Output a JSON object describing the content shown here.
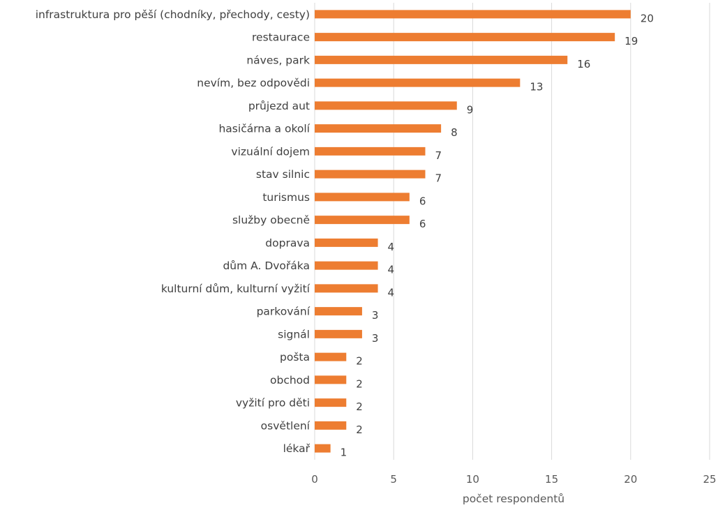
{
  "chart_data": {
    "type": "bar",
    "orientation": "horizontal",
    "categories": [
      "infrastruktura pro pěší (chodníky, přechody, cesty)",
      "restaurace",
      "náves, park",
      "nevím, bez odpovědi",
      "průjezd aut",
      "hasičárna a okolí",
      "vizuální dojem",
      "stav silnic",
      "turismus",
      "služby obecně",
      "doprava",
      "dům A. Dvořáka",
      "kulturní dům, kulturní vyžití",
      "parkování",
      "signál",
      "pošta",
      "obchod",
      "vyžití pro děti",
      "osvětlení",
      "lékař"
    ],
    "values": [
      20,
      19,
      16,
      13,
      9,
      8,
      7,
      7,
      6,
      6,
      4,
      4,
      4,
      3,
      3,
      2,
      2,
      2,
      2,
      1
    ],
    "title": "",
    "xlabel": "počet respondentů",
    "ylabel": "",
    "xlim": [
      0,
      25
    ],
    "xticks": [
      0,
      5,
      10,
      15,
      20,
      25
    ],
    "grid": "vertical",
    "legend": "none",
    "bar_color": "#ED7D31"
  }
}
